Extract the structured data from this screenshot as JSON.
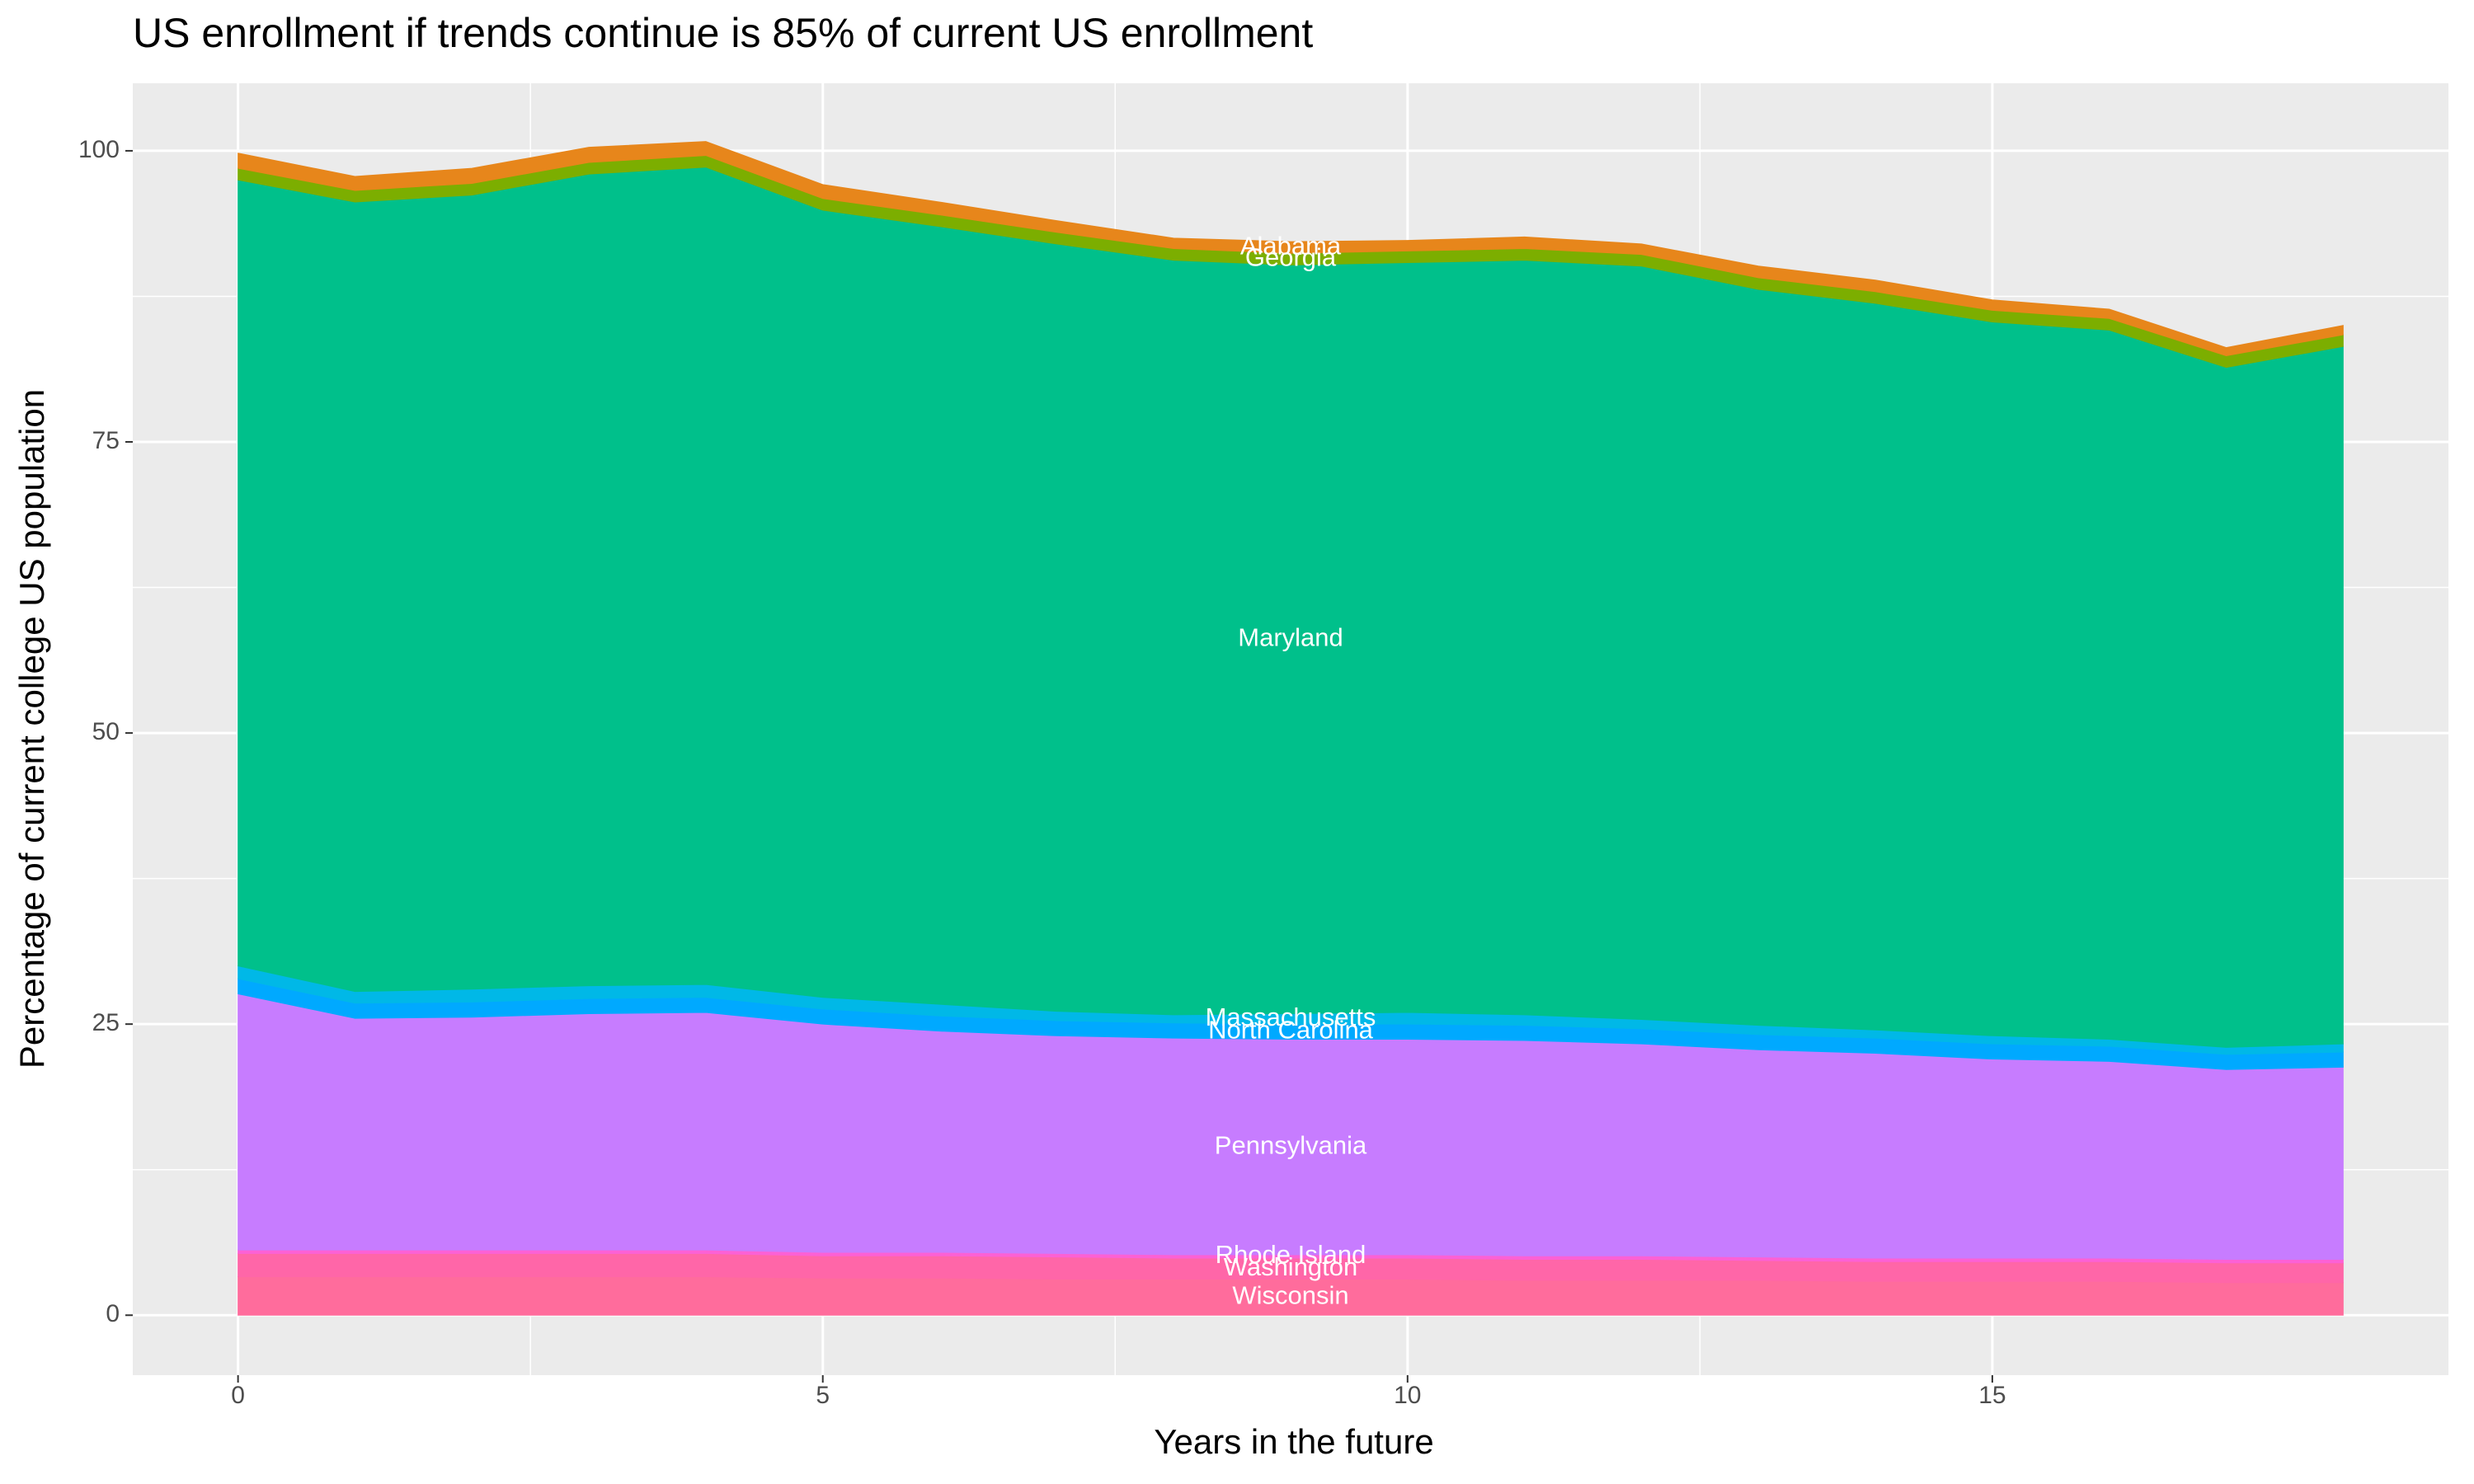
{
  "chart_data": {
    "type": "stacked_area",
    "title": "US enrollment if trends continue is 85% of current US enrollment",
    "x_label": "Years in the future",
    "y_label": "Percentage of current college US population",
    "x": [
      0,
      1,
      2,
      3,
      4,
      5,
      6,
      7,
      8,
      9,
      10,
      11,
      12,
      13,
      14,
      15,
      16,
      17,
      18
    ],
    "xlim": [
      -0.9,
      18.9
    ],
    "xticks": [
      0,
      5,
      10,
      15
    ],
    "ylim": [
      -5.15,
      105.8
    ],
    "yticks": [
      0,
      25,
      50,
      75,
      100
    ],
    "grid": true,
    "minor_grid": true,
    "label_at_x": 9,
    "series": [
      {
        "name": "Wisconsin",
        "color": "#FF6C9C",
        "values": [
          3.3,
          3.3,
          3.3,
          3.3,
          3.3,
          3.2,
          3.2,
          3.1,
          3.1,
          3.1,
          3.1,
          3.0,
          3.0,
          3.0,
          2.9,
          2.9,
          2.9,
          2.8,
          2.8
        ]
      },
      {
        "name": "Washington",
        "color": "#FF66A8",
        "values": [
          2.0,
          2.0,
          2.0,
          2.0,
          2.0,
          1.9,
          1.9,
          1.9,
          1.8,
          1.8,
          1.8,
          1.8,
          1.8,
          1.7,
          1.7,
          1.7,
          1.7,
          1.7,
          1.7
        ]
      },
      {
        "name": "Rhode Island",
        "color": "#FC61D5",
        "values": [
          0.3,
          0.3,
          0.3,
          0.3,
          0.3,
          0.3,
          0.3,
          0.3,
          0.3,
          0.3,
          0.3,
          0.3,
          0.3,
          0.3,
          0.3,
          0.3,
          0.3,
          0.3,
          0.3
        ]
      },
      {
        "name": "Pennsylvania",
        "color": "#C77CFF",
        "values": [
          22.0,
          19.9,
          20.0,
          20.3,
          20.4,
          19.6,
          19.0,
          18.7,
          18.6,
          18.5,
          18.5,
          18.5,
          18.2,
          17.8,
          17.6,
          17.1,
          16.9,
          16.3,
          16.5
        ]
      },
      {
        "name": "North Carolina",
        "color": "#00A9FF",
        "values": [
          1.3,
          1.3,
          1.3,
          1.3,
          1.3,
          1.3,
          1.3,
          1.3,
          1.3,
          1.3,
          1.3,
          1.3,
          1.3,
          1.3,
          1.3,
          1.3,
          1.3,
          1.3,
          1.3
        ]
      },
      {
        "name": "Massachusetts",
        "color": "#00B8E7",
        "values": [
          1.1,
          1.0,
          1.1,
          1.1,
          1.1,
          1.0,
          1.0,
          0.8,
          0.7,
          0.9,
          1.0,
          0.9,
          0.8,
          0.8,
          0.7,
          0.7,
          0.6,
          0.6,
          0.7
        ]
      },
      {
        "name": "Maryland",
        "color": "#00C08B",
        "values": [
          67.5,
          67.8,
          68.2,
          69.7,
          70.2,
          67.6,
          66.8,
          65.9,
          64.8,
          64.3,
          64.4,
          64.8,
          64.7,
          63.2,
          62.4,
          61.3,
          60.9,
          58.4,
          59.9
        ]
      },
      {
        "name": "Georgia",
        "color": "#7CAE00",
        "values": [
          1.0,
          1.0,
          1.0,
          1.0,
          1.0,
          1.0,
          1.0,
          1.0,
          1.0,
          1.0,
          1.0,
          1.0,
          1.0,
          1.0,
          1.0,
          1.0,
          1.0,
          1.0,
          1.0
        ]
      },
      {
        "name": "Alabama",
        "color": "#E7861B",
        "values": [
          1.3,
          1.2,
          1.3,
          1.3,
          1.2,
          1.2,
          1.1,
          1.0,
          0.9,
          1.0,
          0.9,
          1.0,
          0.9,
          1.0,
          1.0,
          0.9,
          0.8,
          0.7,
          0.8
        ]
      }
    ]
  }
}
